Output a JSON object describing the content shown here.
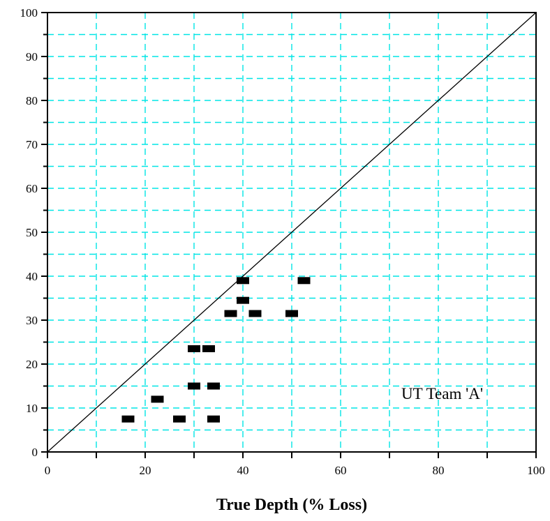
{
  "chart_data": {
    "type": "scatter",
    "xlabel": "True Depth (% Loss)",
    "ylabel": "",
    "xlim": [
      0,
      100
    ],
    "ylim": [
      0,
      100
    ],
    "x_ticks": [
      "0",
      "20",
      "40",
      "60",
      "80",
      "100"
    ],
    "y_ticks": [
      "0",
      "10",
      "20",
      "30",
      "40",
      "50",
      "60",
      "70",
      "80",
      "90",
      "100"
    ],
    "grid": true,
    "grid_color": "#00e5e5",
    "marker_color": "#000000",
    "reference_line": {
      "x": [
        0,
        100
      ],
      "y": [
        0,
        100
      ]
    },
    "annotation": "UT Team 'A'",
    "series": [
      {
        "points": [
          {
            "x": 16.5,
            "y": 7.5
          },
          {
            "x": 22.5,
            "y": 12
          },
          {
            "x": 27,
            "y": 7.5
          },
          {
            "x": 30,
            "y": 15
          },
          {
            "x": 30,
            "y": 23.5
          },
          {
            "x": 33,
            "y": 23.5
          },
          {
            "x": 34,
            "y": 15
          },
          {
            "x": 34,
            "y": 7.5
          },
          {
            "x": 37.5,
            "y": 31.5
          },
          {
            "x": 40,
            "y": 34.5
          },
          {
            "x": 40,
            "y": 39
          },
          {
            "x": 42.5,
            "y": 31.5
          },
          {
            "x": 50,
            "y": 31.5
          },
          {
            "x": 52.5,
            "y": 39
          }
        ]
      }
    ]
  }
}
